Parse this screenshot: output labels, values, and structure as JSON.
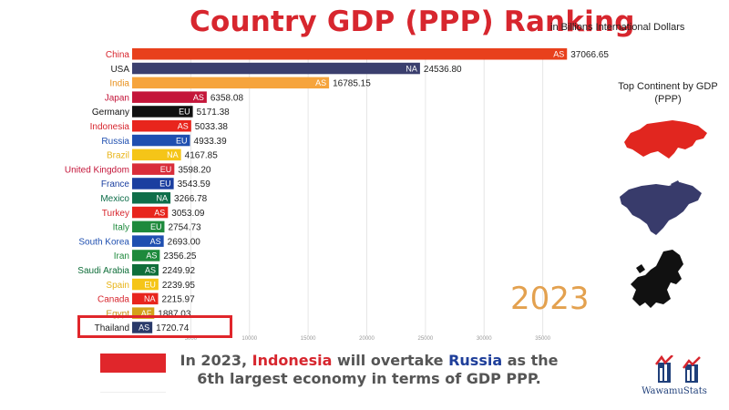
{
  "header": {
    "title": "Country GDP (PPP) Ranking",
    "subtitle": "in Billions International Dollars"
  },
  "year": "2023",
  "legend": {
    "heading": "Top Continent by GDP (PPP)",
    "icons": [
      "asia-map-icon",
      "north-america-map-icon",
      "europe-map-icon"
    ]
  },
  "caption": {
    "prefix": "In 2023, ",
    "country_a": "Indonesia",
    "middle": " will overtake ",
    "country_b": "Russia",
    "suffix": " as the 6th largest economy in terms of GDP PPP."
  },
  "logo": {
    "text": "WawamuStats"
  },
  "colors": {
    "title": "#d7262e",
    "year": "#e3a14f",
    "highlight": "#e0262b"
  },
  "chart_data": {
    "type": "bar",
    "orientation": "horizontal",
    "title": "Country GDP (PPP) Ranking",
    "subtitle": "in Billions International Dollars",
    "xlim": [
      0,
      40000
    ],
    "x_ticks": [
      "5000",
      "10000",
      "15000",
      "20000",
      "25000",
      "30000",
      "35000"
    ],
    "grid": true,
    "highlighted": "Thailand",
    "rows": [
      {
        "country": "China",
        "code": "AS",
        "value": 37066.65,
        "color": "#e8401c",
        "label_color": "#d7262e"
      },
      {
        "country": "USA",
        "code": "NA",
        "value": 24536.8,
        "color": "#3b3f6e",
        "label_color": "#222222"
      },
      {
        "country": "India",
        "code": "AS",
        "value": 16785.15,
        "color": "#f6a43c",
        "label_color": "#e8901c"
      },
      {
        "country": "Japan",
        "code": "AS",
        "value": 6358.08,
        "color": "#c4163a",
        "label_color": "#c4163a"
      },
      {
        "country": "Germany",
        "code": "EU",
        "value": 5171.38,
        "color": "#111111",
        "label_color": "#111111"
      },
      {
        "country": "Indonesia",
        "code": "AS",
        "value": 5033.38,
        "color": "#e8251d",
        "label_color": "#d7262e"
      },
      {
        "country": "Russia",
        "code": "EU",
        "value": 4933.39,
        "color": "#1f4fb0",
        "label_color": "#1f4fb0"
      },
      {
        "country": "Brazil",
        "code": "NA",
        "value": 4167.85,
        "color": "#f5c518",
        "label_color": "#e8b418"
      },
      {
        "country": "United Kingdom",
        "code": "EU",
        "value": 3598.2,
        "color": "#d92d3a",
        "label_color": "#c4163a"
      },
      {
        "country": "France",
        "code": "EU",
        "value": 3543.59,
        "color": "#1b3fa0",
        "label_color": "#1b3fa0"
      },
      {
        "country": "Mexico",
        "code": "NA",
        "value": 3266.78,
        "color": "#0f6e4a",
        "label_color": "#0f6e4a"
      },
      {
        "country": "Turkey",
        "code": "AS",
        "value": 3053.09,
        "color": "#e8251d",
        "label_color": "#d7262e"
      },
      {
        "country": "Italy",
        "code": "EU",
        "value": 2754.73,
        "color": "#1e8a3c",
        "label_color": "#1e8a3c"
      },
      {
        "country": "South Korea",
        "code": "AS",
        "value": 2693.0,
        "color": "#1f4fb0",
        "label_color": "#1f4fb0"
      },
      {
        "country": "Iran",
        "code": "AS",
        "value": 2356.25,
        "color": "#1e8a3c",
        "label_color": "#1e8a3c"
      },
      {
        "country": "Saudi Arabia",
        "code": "AS",
        "value": 2249.92,
        "color": "#0f6e3a",
        "label_color": "#0f6e3a"
      },
      {
        "country": "Spain",
        "code": "EU",
        "value": 2239.95,
        "color": "#f5c518",
        "label_color": "#e8b418"
      },
      {
        "country": "Canada",
        "code": "NA",
        "value": 2215.97,
        "color": "#e8251d",
        "label_color": "#d7262e"
      },
      {
        "country": "Egypt",
        "code": "AF",
        "value": 1887.03,
        "color": "#d4a21a",
        "label_color": "#c49416"
      },
      {
        "country": "Thailand",
        "code": "AS",
        "value": 1720.74,
        "color": "#2a3a6a",
        "label_color": "#222222"
      }
    ]
  }
}
